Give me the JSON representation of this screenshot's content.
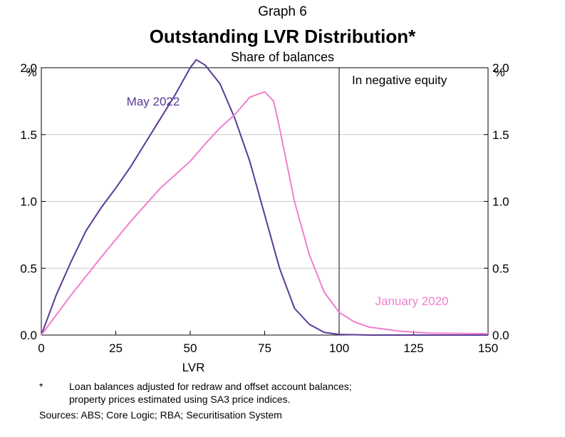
{
  "header": {
    "graph_label": "Graph 6",
    "title": "Outstanding LVR Distribution*",
    "subtitle": "Share of balances"
  },
  "colors": {
    "may_2022": "#5b3a94",
    "jan_2020": "#f07fd0",
    "axis": "#000000",
    "grid": "#c8c8c8"
  },
  "chart_data": {
    "type": "line",
    "title": "Outstanding LVR Distribution*",
    "subtitle": "Share of balances",
    "xlabel": "LVR",
    "ylabel_left": "%",
    "ylabel_right": "%",
    "xlim": [
      0,
      150
    ],
    "ylim": [
      0,
      2.0
    ],
    "xticks": [
      "0",
      "25",
      "50",
      "75",
      "100",
      "125",
      "150"
    ],
    "yticks": [
      "0.0",
      "0.5",
      "1.0",
      "1.5",
      "2.0"
    ],
    "grid": true,
    "annotation": {
      "text": "In negative equity",
      "x": 100
    },
    "series": [
      {
        "name": "May 2022",
        "color": "#5b3a94",
        "x": [
          0,
          5,
          10,
          15,
          20,
          25,
          30,
          35,
          40,
          45,
          50,
          52,
          55,
          60,
          65,
          70,
          75,
          80,
          85,
          90,
          95,
          100,
          110,
          150
        ],
        "y": [
          0,
          0.3,
          0.55,
          0.78,
          0.95,
          1.1,
          1.26,
          1.44,
          1.62,
          1.8,
          2.0,
          2.06,
          2.02,
          1.88,
          1.62,
          1.3,
          0.9,
          0.5,
          0.2,
          0.08,
          0.02,
          0.005,
          0.0,
          0.0
        ]
      },
      {
        "name": "January 2020",
        "color": "#f07fd0",
        "x": [
          0,
          10,
          20,
          30,
          40,
          50,
          55,
          60,
          65,
          70,
          75,
          78,
          80,
          85,
          90,
          95,
          100,
          105,
          110,
          120,
          130,
          150
        ],
        "y": [
          0,
          0.3,
          0.58,
          0.85,
          1.1,
          1.3,
          1.43,
          1.55,
          1.65,
          1.78,
          1.82,
          1.75,
          1.55,
          1.0,
          0.6,
          0.32,
          0.17,
          0.1,
          0.06,
          0.03,
          0.015,
          0.01
        ]
      }
    ]
  },
  "footnotes": {
    "star": "*",
    "note_line1": "Loan balances adjusted for redraw and offset account balances;",
    "note_line2": "property prices estimated using SA3 price indices.",
    "sources": "Sources: ABS; Core Logic; RBA; Securitisation System"
  }
}
